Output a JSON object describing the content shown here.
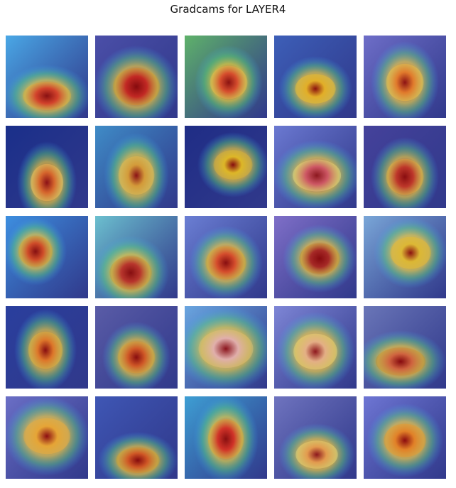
{
  "figure": {
    "title": "Gradcams for LAYER4"
  },
  "tiles": [
    {
      "bg": "#4aa8e6",
      "heat": "#e23b1e",
      "subject": "#b07a50"
    },
    {
      "bg": "#4b4fa8",
      "heat": "#d2231a",
      "subject": "#8a4a2e"
    },
    {
      "bg": "#5fb26a",
      "heat": "#e34521",
      "subject": "#c58b6e"
    },
    {
      "bg": "#3d5fb8",
      "heat": "#f1b81e",
      "subject": "#d39a2c"
    },
    {
      "bg": "#6e6ec8",
      "heat": "#ee7a1c",
      "subject": "#d1a06d"
    },
    {
      "bg": "#1a2f8a",
      "heat": "#e2641a",
      "subject": "#e2a2a0"
    },
    {
      "bg": "#3f8cc7",
      "heat": "#e1a02a",
      "subject": "#c68e80"
    },
    {
      "bg": "#1f2d86",
      "heat": "#f2c81d",
      "subject": "#9c7040"
    },
    {
      "bg": "#6b79d1",
      "heat": "#d84b52",
      "subject": "#c8d7ea"
    },
    {
      "bg": "#45429b",
      "heat": "#c9321f",
      "subject": "#b86e50"
    },
    {
      "bg": "#3d8fe0",
      "heat": "#e2491c",
      "subject": "#8c5a3a"
    },
    {
      "bg": "#6cc0cf",
      "heat": "#c62f22",
      "subject": "#7f4a3a"
    },
    {
      "bg": "#6b7fd4",
      "heat": "#e64b22",
      "subject": "#9a6036"
    },
    {
      "bg": "#7f6fc8",
      "heat": "#b0241c",
      "subject": "#7b3a2a"
    },
    {
      "bg": "#7aa7d8",
      "heat": "#e9c22b",
      "subject": "#c88a32"
    },
    {
      "bg": "#2a3f9e",
      "heat": "#ef7a1e",
      "subject": "#b1784f"
    },
    {
      "bg": "#5a5ca7",
      "heat": "#e05a1c",
      "subject": "#9a5a40"
    },
    {
      "bg": "#6aa6e0",
      "heat": "#f0b6a8",
      "subject": "#b69bc6"
    },
    {
      "bg": "#7e86d6",
      "heat": "#f0b27b",
      "subject": "#d8d2d4"
    },
    {
      "bg": "#6a76b8",
      "heat": "#e26a3a",
      "subject": "#7a2a2a"
    },
    {
      "bg": "#6b6fc6",
      "heat": "#f4b12a",
      "subject": "#cf6452"
    },
    {
      "bg": "#3f57b5",
      "heat": "#e25a1c",
      "subject": "#8e4a2a"
    },
    {
      "bg": "#3e9fd4",
      "heat": "#e02a1c",
      "subject": "#b0663d"
    },
    {
      "bg": "#6f74bf",
      "heat": "#f09a3a",
      "subject": "#d7d5dc"
    },
    {
      "bg": "#6e76d4",
      "heat": "#f08a1d",
      "subject": "#c2412a"
    }
  ]
}
